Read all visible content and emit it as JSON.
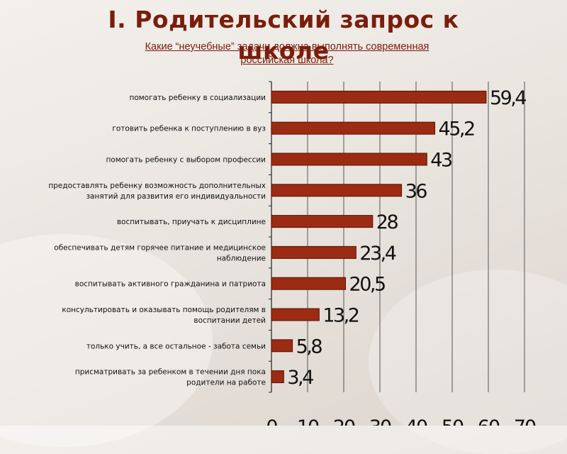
{
  "title": {
    "line1": "I. Родительский запрос к",
    "line2": "школе"
  },
  "subtitle": {
    "line1": "Какие “неучебные” задачи должна выполнять современная",
    "line2": "российская школа?"
  },
  "colors": {
    "bar": "#9b2b12",
    "bar_outline": "#5a1205",
    "title": "#7a1e0c"
  },
  "chart_data": {
    "type": "bar",
    "orientation": "horizontal",
    "title": "Какие “неучебные” задачи должна выполнять современная российская школа?",
    "categories": [
      "помогать ребенку в социализации",
      "готовить ребенка к поступлению в вуз",
      "помогать ребенку с выбором профессии",
      "предоставлять ребенку возможность дополнительных занятий для развития его индивидуальности",
      "воспитывать, приучать к дисциплине",
      "обеспечивать детям горячее питание и медицинское наблюдение",
      "воспитывать активного гражданина и патриота",
      "консультировать и оказывать помощь родителям в воспитании детей",
      "только учить, а все остальное  - забота семьи",
      "присматривать за ребенком в течении дня пока родители на работе"
    ],
    "category_lines": [
      [
        "помогать ребенку в социализации"
      ],
      [
        "готовить ребенка к поступлению в вуз"
      ],
      [
        "помогать ребенку с выбором профессии"
      ],
      [
        "предоставлять ребенку возможность дополнительных",
        "занятий для развития его индивидуальности"
      ],
      [
        "воспитывать, приучать к дисциплине"
      ],
      [
        "обеспечивать детям горячее питание и медицинское",
        "наблюдение"
      ],
      [
        "воспитывать активного гражданина и патриота"
      ],
      [
        "консультировать и оказывать помощь родителям в",
        "воспитании детей"
      ],
      [
        "только учить, а все остальное  - забота семьи"
      ],
      [
        "присматривать за ребенком в течении дня пока",
        "родители на работе"
      ]
    ],
    "values": [
      59.4,
      45.2,
      43,
      36,
      28,
      23.4,
      20.5,
      13.2,
      5.8,
      3.4
    ],
    "value_labels": [
      "59,4",
      "45,2",
      "43",
      "36",
      "28",
      "23,4",
      "20,5",
      "13,2",
      "5,8",
      "3,4"
    ],
    "xlim": [
      0,
      70
    ],
    "xticks": [
      0,
      10,
      20,
      30,
      40,
      50,
      60,
      70
    ],
    "grid": true,
    "xlabel": "",
    "ylabel": ""
  }
}
